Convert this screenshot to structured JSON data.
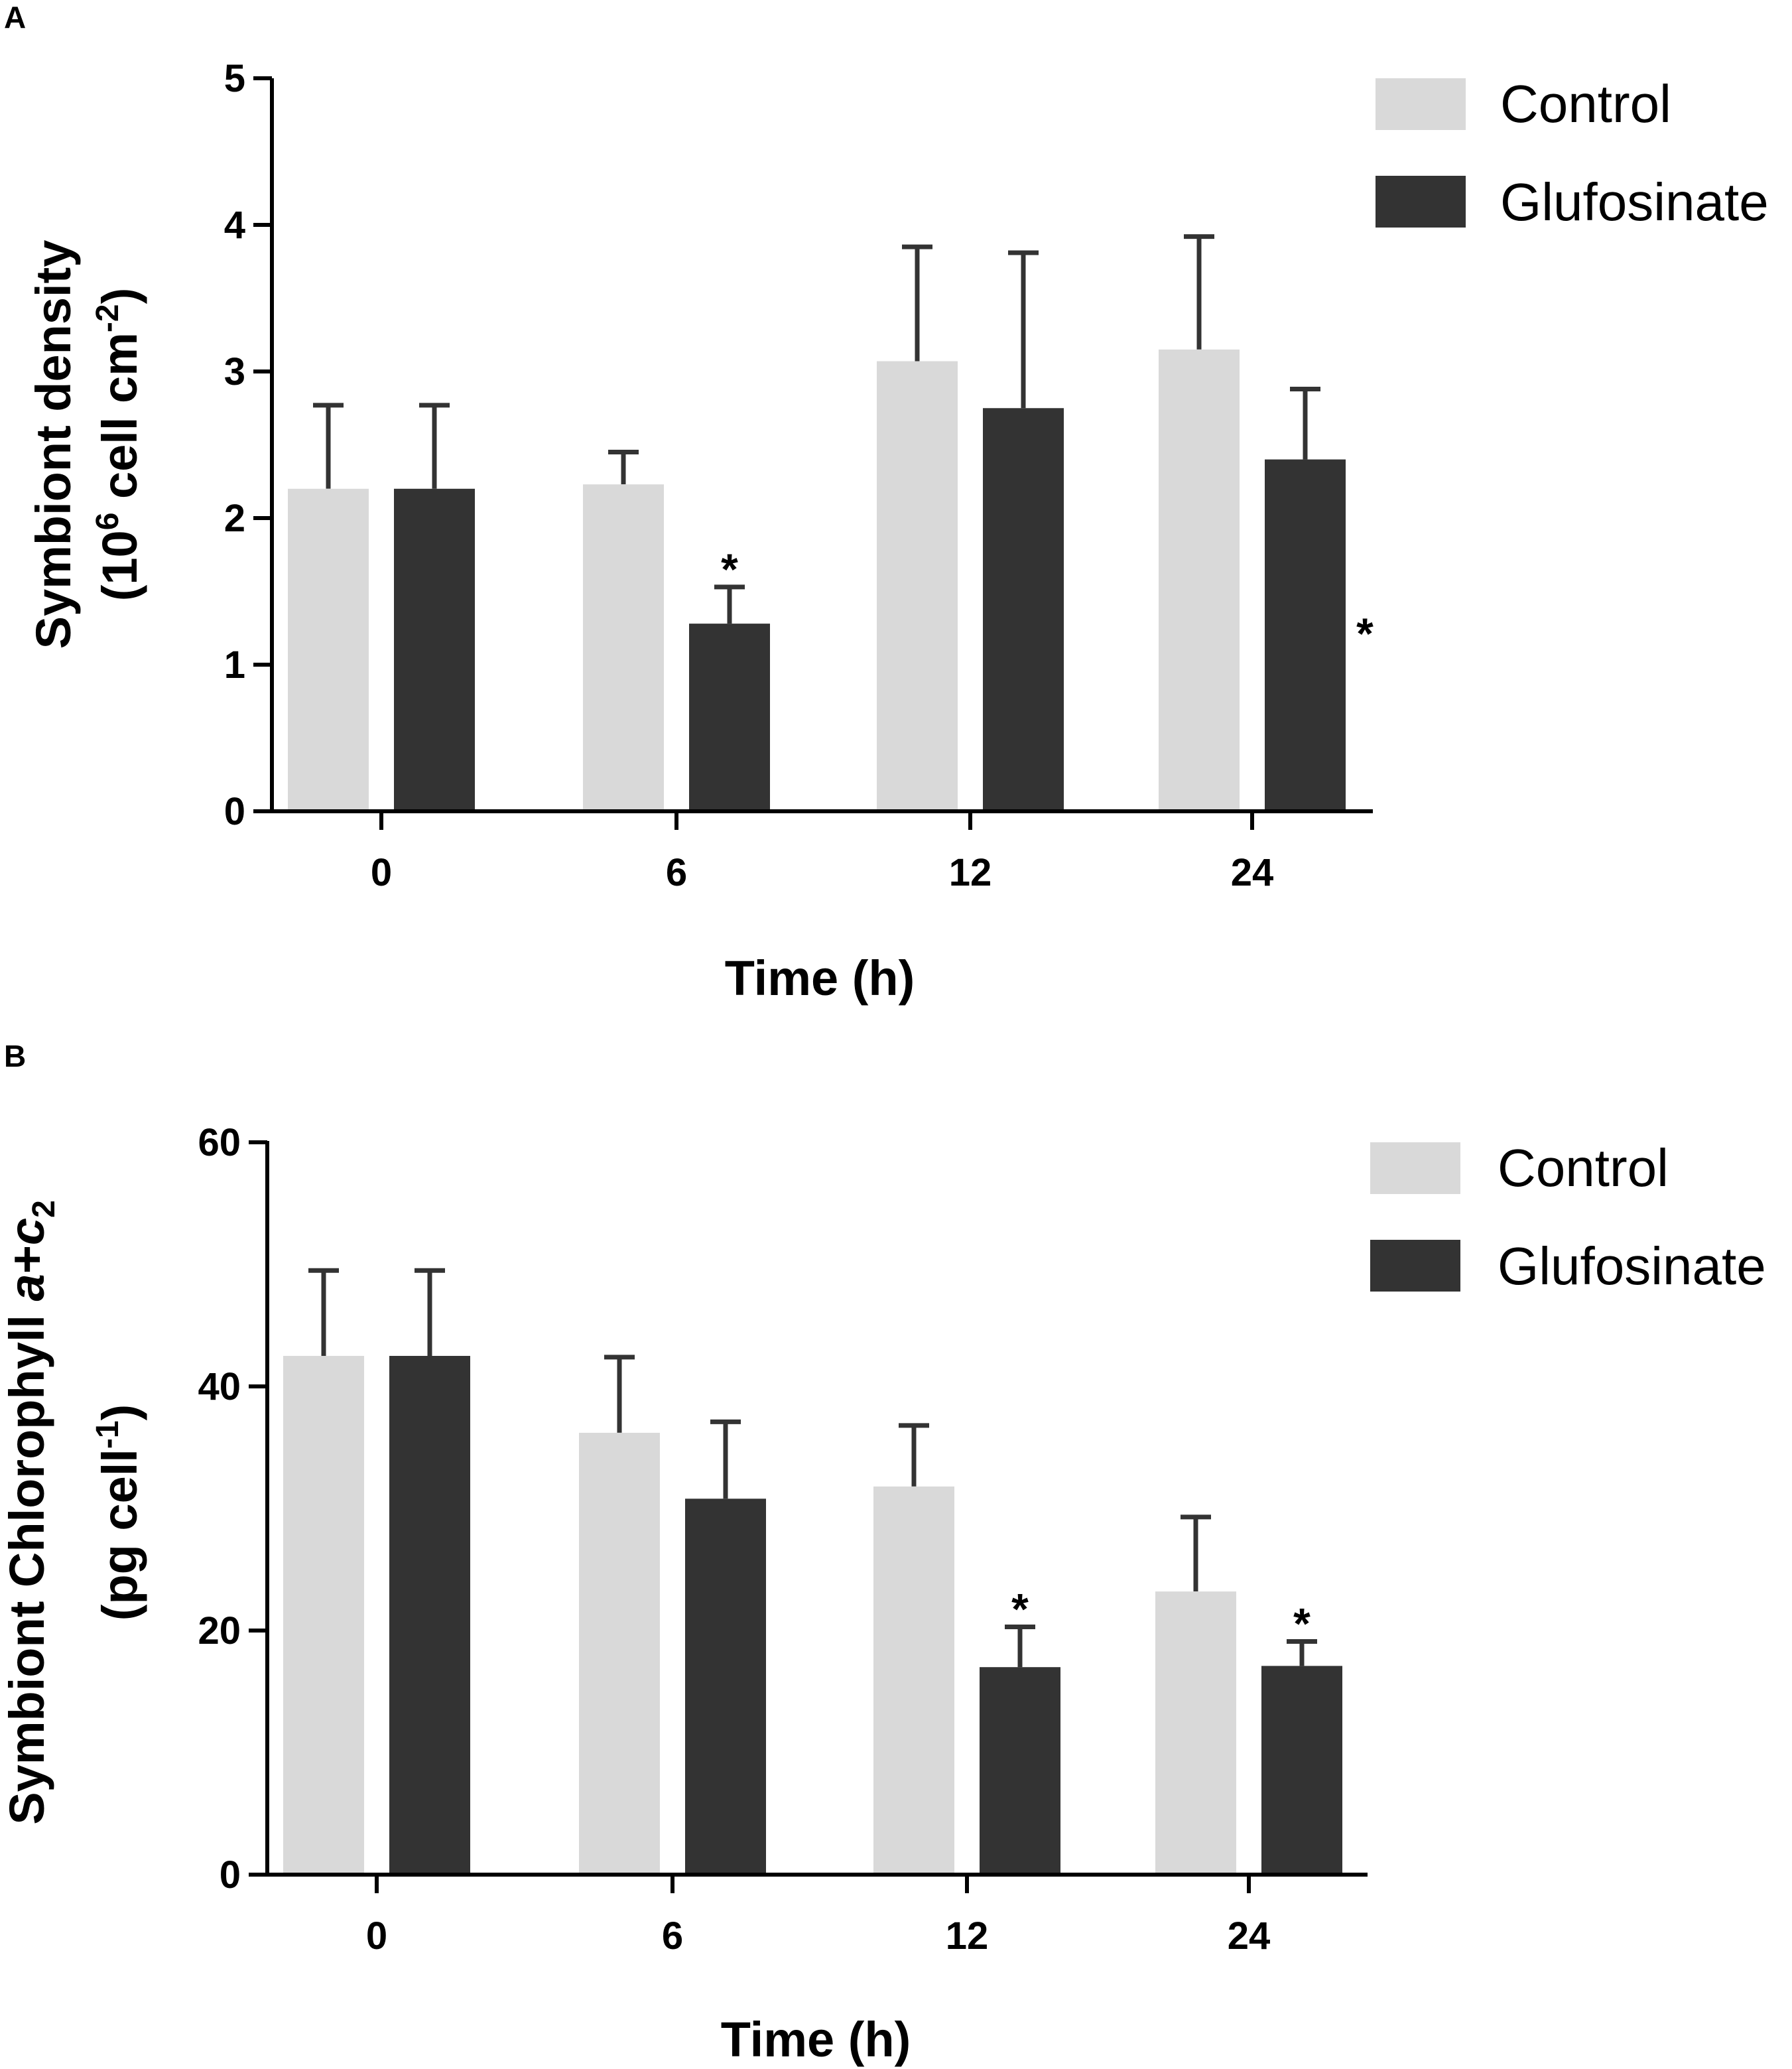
{
  "colors": {
    "control": "#d9d9d9",
    "glufosinate": "#333333",
    "error_bar": "#333333",
    "axis": "#000000"
  },
  "chart_data": [
    {
      "panel": "A",
      "type": "bar",
      "categories": [
        "0",
        "6",
        "12",
        "24"
      ],
      "xlabel": "Time (h)",
      "ylabel_line1": "Symbiont density",
      "ylabel_line2_prefix": "(10",
      "ylabel_line2_sup1": "6",
      "ylabel_line2_mid": " cell cm",
      "ylabel_line2_sup2": "-2",
      "ylabel_line2_suffix": ")",
      "ylim": [
        0,
        5
      ],
      "yticks": [
        "0",
        "1",
        "2",
        "3",
        "4",
        "5"
      ],
      "legend": [
        "Control",
        "Glufosinate"
      ],
      "legend_position": "top-right",
      "series": [
        {
          "name": "Control",
          "values": [
            2.2,
            2.23,
            3.07,
            3.15
          ],
          "errors": [
            0.57,
            0.22,
            0.78,
            0.77
          ]
        },
        {
          "name": "Glufosinate",
          "values": [
            2.2,
            1.28,
            2.75,
            2.4
          ],
          "errors": [
            0.57,
            0.25,
            1.06,
            0.48
          ]
        }
      ],
      "annotations": [
        {
          "series": 1,
          "category": 1,
          "text": "*"
        },
        {
          "series": 1,
          "category": 3,
          "text": "*",
          "placement": "inside-bar"
        }
      ]
    },
    {
      "panel": "B",
      "type": "bar",
      "categories": [
        "0",
        "6",
        "12",
        "24"
      ],
      "xlabel": "Time (h)",
      "ylabel_line1_prefix": "Symbiont Chlorophyll ",
      "ylabel_line1_italic_a": "a",
      "ylabel_line1_plus": "+",
      "ylabel_line1_italic_c": "c",
      "ylabel_line1_sub": "2",
      "ylabel_line2_prefix": "(pg cell",
      "ylabel_line2_sup": "-1",
      "ylabel_line2_suffix": ")",
      "ylim": [
        0,
        60
      ],
      "yticks": [
        "0",
        "20",
        "40",
        "60"
      ],
      "legend": [
        "Control",
        "Glufosinate"
      ],
      "legend_position": "top-right",
      "series": [
        {
          "name": "Control",
          "values": [
            42.5,
            36.2,
            31.8,
            23.2
          ],
          "errors": [
            7.0,
            6.2,
            5.0,
            6.1
          ]
        },
        {
          "name": "Glufosinate",
          "values": [
            42.5,
            30.8,
            17.0,
            17.1
          ],
          "errors": [
            7.0,
            6.3,
            3.3,
            2.0
          ]
        }
      ],
      "annotations": [
        {
          "series": 1,
          "category": 2,
          "text": "*"
        },
        {
          "series": 1,
          "category": 3,
          "text": "*"
        }
      ]
    }
  ]
}
